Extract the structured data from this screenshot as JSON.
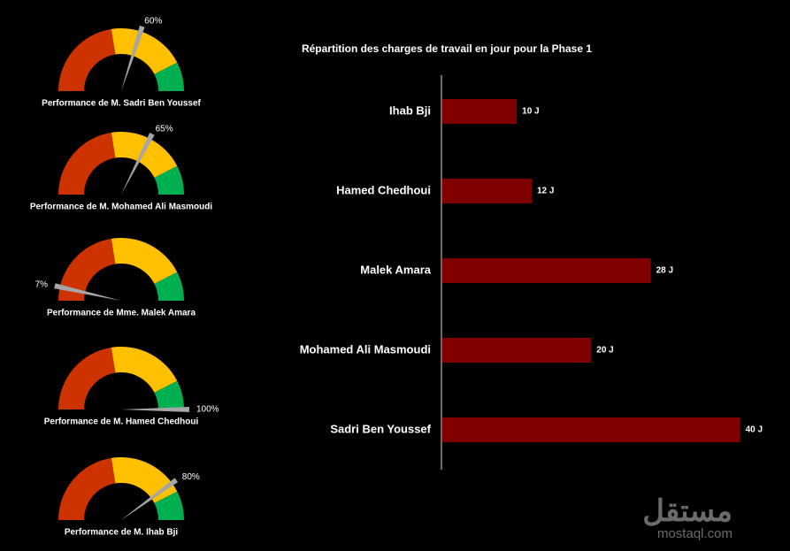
{
  "chart_data": [
    {
      "type": "gauge",
      "label": "Performance de M. Sadri Ben Youssef",
      "value": 60,
      "value_label": "60%",
      "lim": [
        0,
        100
      ],
      "band_limits": [
        0,
        45,
        85,
        100
      ],
      "band_colors": [
        "#cc3300",
        "#ffc000",
        "#00b050"
      ],
      "needle_color": "#a6a6a6"
    },
    {
      "type": "gauge",
      "label": "Performance de M. Mohamed Ali Masmoudi",
      "value": 65,
      "value_label": "65%",
      "lim": [
        0,
        100
      ],
      "band_limits": [
        0,
        45,
        85,
        100
      ],
      "band_colors": [
        "#cc3300",
        "#ffc000",
        "#00b050"
      ],
      "needle_color": "#a6a6a6"
    },
    {
      "type": "gauge",
      "label": "Performance de Mme. Malek Amara",
      "value": 7,
      "value_label": "7%",
      "lim": [
        0,
        100
      ],
      "band_limits": [
        0,
        45,
        85,
        100
      ],
      "band_colors": [
        "#cc3300",
        "#ffc000",
        "#00b050"
      ],
      "needle_color": "#a6a6a6"
    },
    {
      "type": "gauge",
      "label": "Performance de M. Hamed Chedhoui",
      "value": 100,
      "value_label": "100%",
      "lim": [
        0,
        100
      ],
      "band_limits": [
        0,
        45,
        85,
        100
      ],
      "band_colors": [
        "#cc3300",
        "#ffc000",
        "#00b050"
      ],
      "needle_color": "#a6a6a6"
    },
    {
      "type": "gauge",
      "label": "Performance de M. Ihab Bji",
      "value": 80,
      "value_label": "80%",
      "lim": [
        0,
        100
      ],
      "band_limits": [
        0,
        45,
        85,
        100
      ],
      "band_colors": [
        "#cc3300",
        "#ffc000",
        "#00b050"
      ],
      "needle_color": "#a6a6a6"
    },
    {
      "type": "bar",
      "orientation": "horizontal",
      "title": "Répartition des charges de travail en jour pour la Phase 1",
      "categories": [
        "Ihab Bji",
        "Hamed Chedhoui",
        "Malek Amara",
        "Mohamed Ali Masmoudi",
        "Sadri Ben Youssef"
      ],
      "values": [
        10,
        12,
        28,
        20,
        40
      ],
      "value_labels": [
        "10 J",
        "12 J",
        "28 J",
        "20 J",
        "40 J"
      ],
      "color": "#800000",
      "xlim": [
        0,
        41
      ]
    }
  ],
  "watermark": {
    "arabic": "مستقل",
    "latin": "mostaql.com"
  }
}
